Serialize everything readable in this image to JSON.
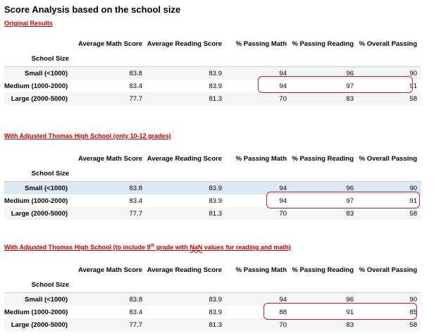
{
  "title": "Score Analysis based on the school size",
  "columns": [
    "Average Math Score",
    "Average Reading Score",
    "% Passing Math",
    "% Passing Reading",
    "% Overall Passing"
  ],
  "index_name": "School Size",
  "sections": [
    {
      "heading": "Original Results",
      "rows": [
        {
          "label": "Small (<1000)",
          "values": [
            "83.8",
            "83.9",
            "94",
            "96",
            "90"
          ]
        },
        {
          "label": "Medium (1000-2000)",
          "values": [
            "83.4",
            "83.9",
            "94",
            "97",
            "91"
          ]
        },
        {
          "label": "Large (2000-5000)",
          "values": [
            "77.7",
            "81.3",
            "70",
            "83",
            "58"
          ]
        }
      ]
    },
    {
      "heading": "With Adjusted Thomas High School (only 10-12 grades)",
      "rows": [
        {
          "label": "Small (<1000)",
          "values": [
            "83.8",
            "83.9",
            "94",
            "96",
            "90"
          ]
        },
        {
          "label": "Medium (1000-2000)",
          "values": [
            "83.4",
            "83.9",
            "94",
            "97",
            "91"
          ]
        },
        {
          "label": "Large (2000-5000)",
          "values": [
            "77.7",
            "81.3",
            "70",
            "83",
            "58"
          ]
        }
      ]
    },
    {
      "heading_parts": {
        "before": "With Adjusted Thomas High School (to include 9",
        "sup": "th",
        "middle": " grade with ",
        "nan": "NaN",
        "after": " values for reading and math)"
      },
      "rows": [
        {
          "label": "Small (<1000)",
          "values": [
            "83.8",
            "83.9",
            "94",
            "96",
            "90"
          ]
        },
        {
          "label": "Medium (1000-2000)",
          "values": [
            "83.4",
            "83.9",
            "88",
            "91",
            "85"
          ]
        },
        {
          "label": "Large (2000-5000)",
          "values": [
            "77.7",
            "81.3",
            "70",
            "83",
            "58"
          ]
        }
      ]
    }
  ]
}
